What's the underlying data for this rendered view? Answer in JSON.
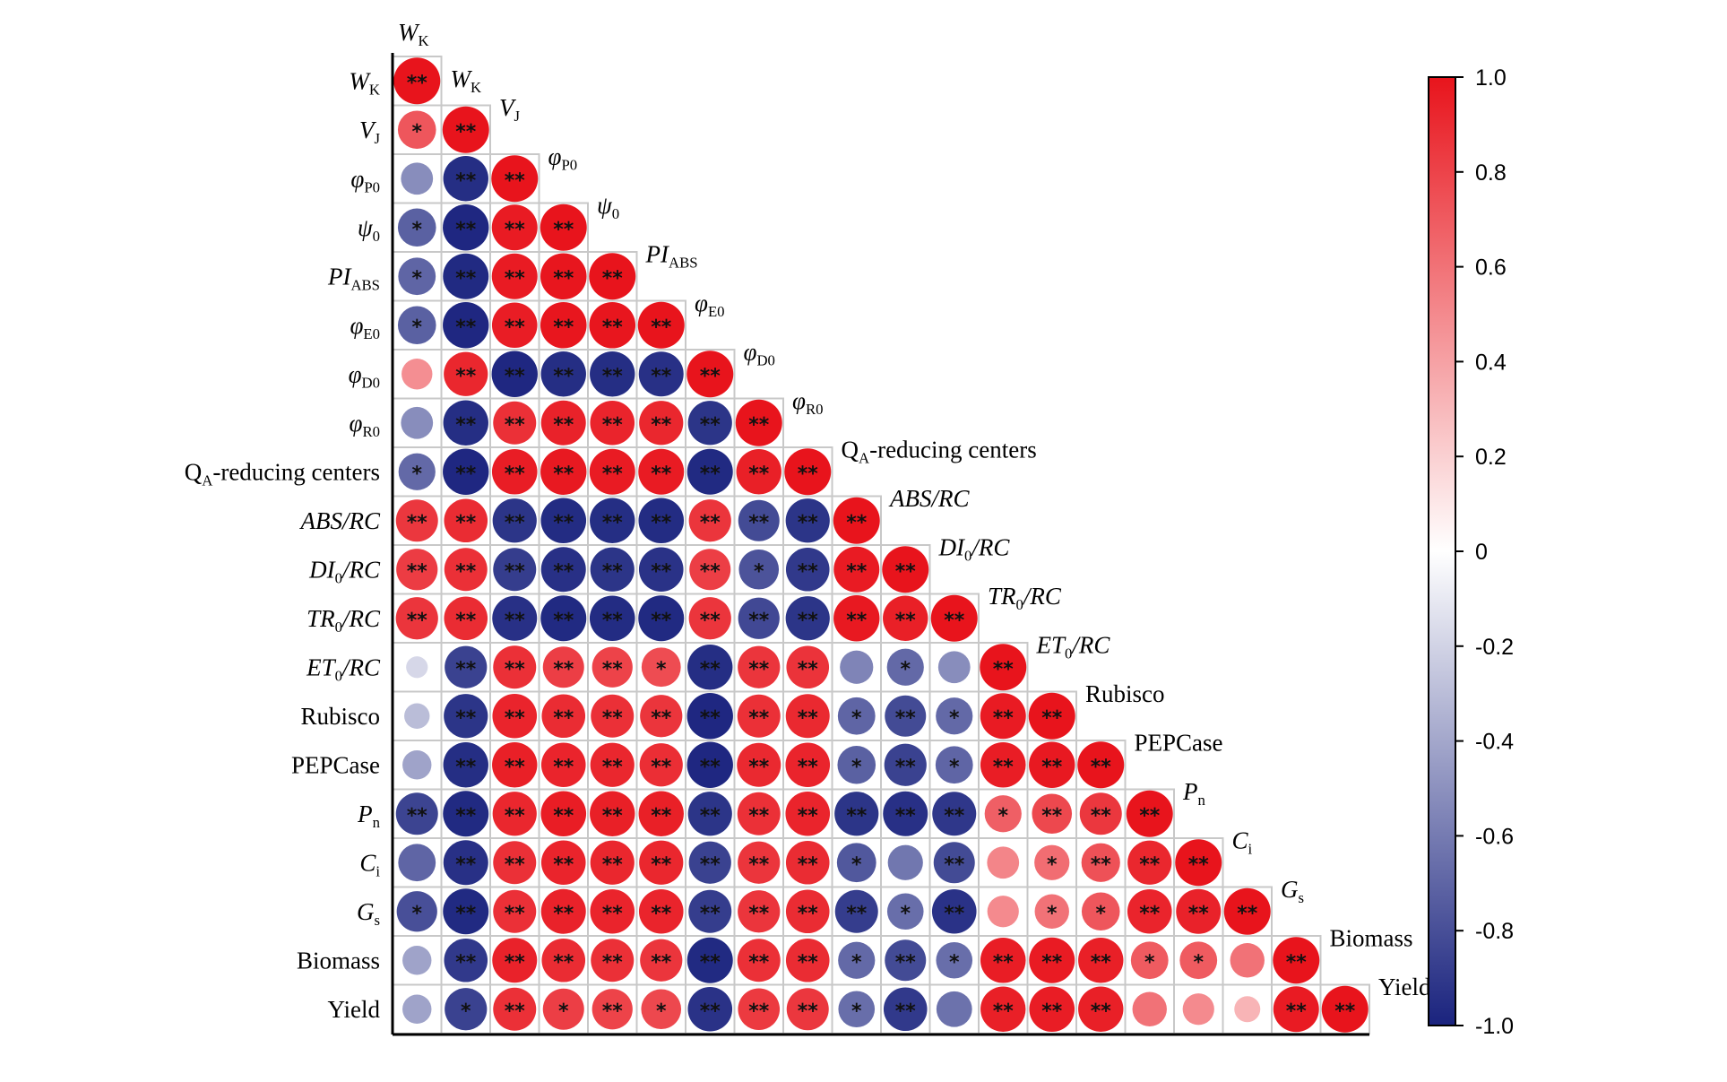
{
  "chart_data": {
    "type": "heatmap",
    "variables": [
      {
        "id": "WK",
        "main": "W",
        "sub": "K",
        "italic": true
      },
      {
        "id": "VJ",
        "main": "V",
        "sub": "J",
        "italic": true
      },
      {
        "id": "phiP0",
        "main": "φ",
        "sub": "P0",
        "italic": true
      },
      {
        "id": "psi0",
        "main": "ψ",
        "sub": "0",
        "italic": true
      },
      {
        "id": "PIabs",
        "main": "PI",
        "sub": "ABS",
        "italic": true
      },
      {
        "id": "phiE0",
        "main": "φ",
        "sub": "E0",
        "italic": true
      },
      {
        "id": "phiD0",
        "main": "φ",
        "sub": "D0",
        "italic": true
      },
      {
        "id": "phiR0",
        "main": "φ",
        "sub": "R0",
        "italic": true
      },
      {
        "id": "QA",
        "main": "Q",
        "sub": "A",
        "post": "-reducing centers",
        "italic": false
      },
      {
        "id": "ABSRC",
        "main": "ABS/RC",
        "sub": "",
        "italic": true
      },
      {
        "id": "DI0RC",
        "main": "DI",
        "sub": "0",
        "post": "/RC",
        "italic": true
      },
      {
        "id": "TR0RC",
        "main": "TR",
        "sub": "0",
        "post": "/RC",
        "italic": true
      },
      {
        "id": "ET0RC",
        "main": "ET",
        "sub": "0",
        "post": "/RC",
        "italic": true
      },
      {
        "id": "Rubisco",
        "main": "Rubisco",
        "sub": "",
        "italic": false
      },
      {
        "id": "PEPCase",
        "main": "PEPCase",
        "sub": "",
        "italic": false
      },
      {
        "id": "Pn",
        "main": "P",
        "sub": "n",
        "italic": true
      },
      {
        "id": "Ci",
        "main": "C",
        "sub": "i",
        "italic": true
      },
      {
        "id": "Gs",
        "main": "G",
        "sub": "s",
        "italic": true
      },
      {
        "id": "Biomass",
        "main": "Biomass",
        "sub": "",
        "italic": false
      },
      {
        "id": "Yield",
        "main": "Yield",
        "sub": "",
        "italic": false
      }
    ],
    "lower_triangle": [
      [
        1.0
      ],
      [
        0.72,
        1.0
      ],
      [
        -0.52,
        -0.95,
        1.0
      ],
      [
        -0.72,
        -0.98,
        0.97,
        1.0
      ],
      [
        -0.7,
        -0.97,
        0.97,
        0.99,
        1.0
      ],
      [
        -0.72,
        -0.98,
        0.96,
        0.99,
        0.99,
        1.0
      ],
      [
        0.48,
        0.92,
        -0.98,
        -0.95,
        -0.95,
        -0.94,
        1.0
      ],
      [
        -0.52,
        -0.95,
        0.88,
        0.94,
        0.93,
        0.92,
        -0.92,
        1.0
      ],
      [
        -0.68,
        -0.98,
        0.96,
        0.98,
        0.97,
        0.97,
        -0.97,
        0.95,
        1.0
      ],
      [
        0.85,
        0.9,
        -0.92,
        -0.96,
        -0.95,
        -0.96,
        0.86,
        -0.82,
        -0.92,
        1.0
      ],
      [
        0.83,
        0.88,
        -0.88,
        -0.94,
        -0.92,
        -0.93,
        0.82,
        -0.78,
        -0.9,
        0.97,
        1.0
      ],
      [
        0.86,
        0.9,
        -0.94,
        -0.97,
        -0.96,
        -0.97,
        0.86,
        -0.83,
        -0.92,
        0.98,
        0.95,
        1.0
      ],
      [
        -0.18,
        -0.86,
        0.88,
        0.82,
        0.8,
        0.76,
        -0.95,
        0.86,
        0.87,
        -0.56,
        -0.68,
        -0.52,
        1.0
      ],
      [
        -0.3,
        -0.92,
        0.93,
        0.9,
        0.88,
        0.86,
        -0.98,
        0.88,
        0.91,
        -0.7,
        -0.82,
        -0.68,
        0.97,
        1.0
      ],
      [
        -0.42,
        -0.95,
        0.95,
        0.93,
        0.92,
        0.89,
        -0.98,
        0.91,
        0.93,
        -0.72,
        -0.86,
        -0.7,
        0.96,
        0.98,
        1.0
      ],
      [
        -0.85,
        -0.97,
        0.92,
        0.96,
        0.95,
        0.95,
        -0.92,
        0.88,
        0.93,
        -0.92,
        -0.94,
        -0.91,
        0.68,
        0.78,
        0.85,
        1.0
      ],
      [
        -0.7,
        -0.94,
        0.88,
        0.93,
        0.92,
        0.92,
        -0.86,
        0.86,
        0.9,
        -0.76,
        -0.62,
        -0.82,
        0.52,
        0.62,
        0.74,
        0.92,
        1.0
      ],
      [
        -0.8,
        -0.97,
        0.88,
        0.94,
        0.93,
        0.93,
        -0.88,
        0.86,
        0.9,
        -0.88,
        -0.66,
        -0.93,
        0.5,
        0.6,
        0.72,
        0.93,
        0.94,
        1.0
      ],
      [
        -0.42,
        -0.9,
        0.94,
        0.9,
        0.88,
        0.86,
        -0.97,
        0.88,
        0.9,
        -0.68,
        -0.82,
        -0.66,
        0.96,
        0.97,
        0.95,
        0.7,
        0.7,
        0.6,
        1.0
      ],
      [
        -0.42,
        -0.86,
        0.88,
        0.82,
        0.8,
        0.78,
        -0.93,
        0.84,
        0.85,
        -0.66,
        -0.9,
        -0.64,
        0.95,
        0.96,
        0.95,
        0.6,
        0.5,
        0.32,
        0.97,
        1.0
      ]
    ],
    "significance": [
      [
        "**"
      ],
      [
        "*",
        "**"
      ],
      [
        "",
        "**",
        "**"
      ],
      [
        "*",
        "**",
        "**",
        "**"
      ],
      [
        "*",
        "**",
        "**",
        "**",
        "**"
      ],
      [
        "*",
        "**",
        "**",
        "**",
        "**",
        "**"
      ],
      [
        "",
        "**",
        "**",
        "**",
        "**",
        "**",
        "**"
      ],
      [
        "",
        "**",
        "**",
        "**",
        "**",
        "**",
        "**",
        "**"
      ],
      [
        "*",
        "**",
        "**",
        "**",
        "**",
        "**",
        "**",
        "**",
        "**"
      ],
      [
        "**",
        "**",
        "**",
        "**",
        "**",
        "**",
        "**",
        "**",
        "**",
        "**"
      ],
      [
        "**",
        "**",
        "**",
        "**",
        "**",
        "**",
        "**",
        "*",
        "**",
        "**",
        "**"
      ],
      [
        "**",
        "**",
        "**",
        "**",
        "**",
        "**",
        "**",
        "**",
        "**",
        "**",
        "**",
        "**"
      ],
      [
        "",
        "**",
        "**",
        "**",
        "**",
        "*",
        "**",
        "**",
        "**",
        "",
        "*",
        "",
        "**"
      ],
      [
        "",
        "**",
        "**",
        "**",
        "**",
        "**",
        "**",
        "**",
        "**",
        "*",
        "**",
        "*",
        "**",
        "**"
      ],
      [
        "",
        "**",
        "**",
        "**",
        "**",
        "**",
        "**",
        "**",
        "**",
        "*",
        "**",
        "*",
        "**",
        "**",
        "**"
      ],
      [
        "**",
        "**",
        "**",
        "**",
        "**",
        "**",
        "**",
        "**",
        "**",
        "**",
        "**",
        "**",
        "*",
        "**",
        "**",
        "**"
      ],
      [
        "",
        "**",
        "**",
        "**",
        "**",
        "**",
        "**",
        "**",
        "**",
        "*",
        "",
        "**",
        "",
        "*",
        "**",
        "**",
        "**"
      ],
      [
        "*",
        "**",
        "**",
        "**",
        "**",
        "**",
        "**",
        "**",
        "**",
        "**",
        "*",
        "**",
        "",
        "*",
        "*",
        "**",
        "**",
        "**"
      ],
      [
        "",
        "**",
        "**",
        "**",
        "**",
        "**",
        "**",
        "**",
        "**",
        "*",
        "**",
        "*",
        "**",
        "**",
        "**",
        "*",
        "*",
        "",
        "**"
      ],
      [
        "",
        "*",
        "**",
        "*",
        "**",
        "*",
        "**",
        "**",
        "**",
        "*",
        "**",
        "",
        "**",
        "**",
        "**",
        "",
        "",
        "",
        "**",
        "**"
      ]
    ],
    "colorbar": {
      "range": [
        -1.0,
        1.0
      ],
      "ticks": [
        "1.0",
        "0.8",
        "0.6",
        "0.4",
        "0.2",
        "0",
        "-0.2",
        "-0.4",
        "-0.6",
        "-0.8",
        "-1.0"
      ],
      "colors": {
        "positive": "#e8141c",
        "zero": "#ffffff",
        "negative": "#1a237e"
      }
    }
  }
}
